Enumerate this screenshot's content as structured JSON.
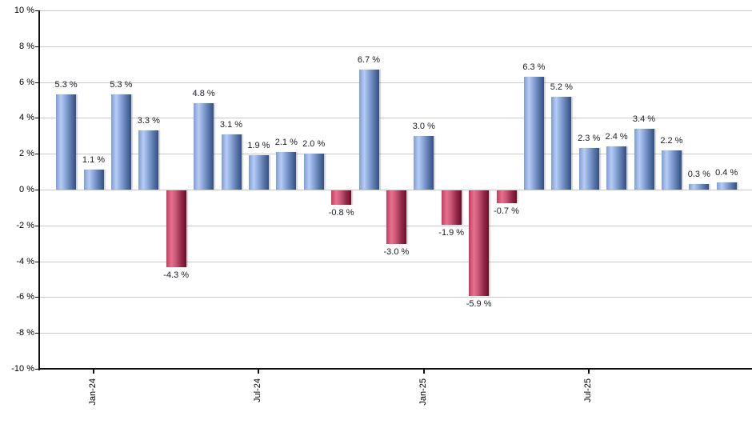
{
  "chart_data": {
    "type": "bar",
    "title": "",
    "xlabel": "",
    "ylabel": "",
    "values": [
      5.3,
      1.1,
      5.3,
      3.3,
      -4.3,
      4.8,
      3.1,
      1.9,
      2.1,
      2.0,
      -0.8,
      6.7,
      -3.0,
      3.0,
      -1.9,
      -5.9,
      -0.7,
      6.3,
      5.2,
      2.3,
      2.4,
      3.4,
      2.2,
      0.3,
      0.4
    ],
    "bar_labels": [
      "5.3 %",
      "1.1 %",
      "5.3 %",
      "3.3 %",
      "-4.3 %",
      "4.8 %",
      "3.1 %",
      "1.9 %",
      "2.1 %",
      "2.0 %",
      "-0.8 %",
      "6.7 %",
      "-3.0 %",
      "3.0 %",
      "-1.9 %",
      "-5.9 %",
      "-0.7 %",
      "6.3 %",
      "5.2 %",
      "2.3 %",
      "2.4 %",
      "3.4 %",
      "2.2 %",
      "0.3 %",
      "0.4 %"
    ],
    "x_ticks": [
      {
        "label": "Jan-24",
        "bar_index": 1
      },
      {
        "label": "Jul-24",
        "bar_index": 7
      },
      {
        "label": "Jan-25",
        "bar_index": 13
      },
      {
        "label": "Jul-25",
        "bar_index": 19
      }
    ],
    "y_ticks": [
      {
        "value": 10,
        "label": "10 %"
      },
      {
        "value": 8,
        "label": "8 %"
      },
      {
        "value": 6,
        "label": "6 %"
      },
      {
        "value": 4,
        "label": "4 %"
      },
      {
        "value": 2,
        "label": "2 %"
      },
      {
        "value": 0,
        "label": "0 %"
      },
      {
        "value": -2,
        "label": "-2 %"
      },
      {
        "value": -4,
        "label": "-4 %"
      },
      {
        "value": -6,
        "label": "-6 %"
      },
      {
        "value": -8,
        "label": "-8 %"
      },
      {
        "value": -10,
        "label": "-10 %"
      }
    ],
    "ylim": [
      -10,
      10
    ],
    "grid": true,
    "legend": "none",
    "colors": {
      "positive_bar_gradient": [
        "#7e9cd9",
        "#b6ccf2",
        "#8fabdd",
        "#5a77ab",
        "#344f80"
      ],
      "negative_bar_gradient": [
        "#c63b5e",
        "#e4718d",
        "#cc5a78",
        "#93284a",
        "#6b0f28"
      ],
      "grid_line": "#c9c9c9",
      "axis_line": "#111111",
      "label_text": "#1b1b26",
      "background": "#ffffff"
    }
  }
}
